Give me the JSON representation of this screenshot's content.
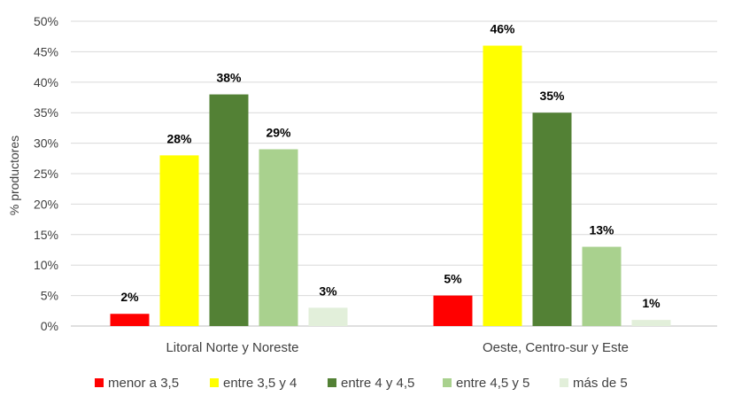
{
  "chart_data": {
    "type": "bar",
    "categories": [
      "Litoral Norte y Noreste",
      "Oeste, Centro-sur y Este"
    ],
    "series": [
      {
        "name": "menor a 3,5",
        "color": "#ff0000",
        "values": [
          2,
          5
        ],
        "labels": [
          "2%",
          "5%"
        ]
      },
      {
        "name": "entre 3,5 y 4",
        "color": "#ffff00",
        "values": [
          28,
          46
        ],
        "labels": [
          "28%",
          "46%"
        ]
      },
      {
        "name": "entre 4 y 4,5",
        "color": "#538135",
        "values": [
          38,
          35
        ],
        "labels": [
          "38%",
          "35%"
        ]
      },
      {
        "name": "entre 4,5 y 5",
        "color": "#a9d18e",
        "values": [
          29,
          13
        ],
        "labels": [
          "29%",
          "13%"
        ]
      },
      {
        "name": "más de 5",
        "color": "#e2efda",
        "values": [
          3,
          1
        ],
        "labels": [
          "3%",
          "1%"
        ]
      }
    ],
    "ylabel": "% productores",
    "xlabel": "",
    "ylim": [
      0,
      50
    ],
    "yticks": [
      "0%",
      "5%",
      "10%",
      "15%",
      "20%",
      "25%",
      "30%",
      "35%",
      "40%",
      "45%",
      "50%"
    ],
    "grid": true,
    "legend_position": "bottom"
  }
}
